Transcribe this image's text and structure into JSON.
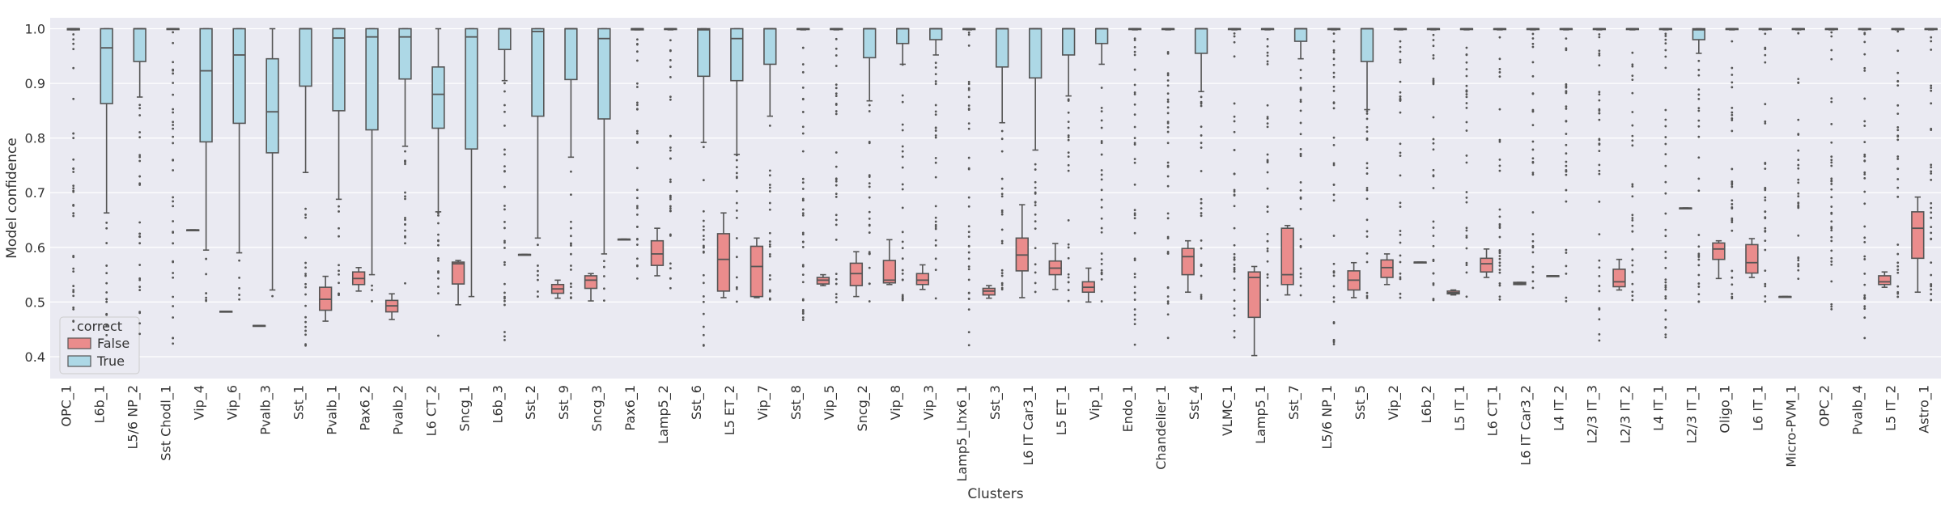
{
  "chart_data": {
    "type": "boxplot",
    "xlabel": "Clusters",
    "ylabel": "Model confidence",
    "ylim": [
      0.36,
      1.02
    ],
    "yticks": [
      0.4,
      0.5,
      0.6,
      0.7,
      0.8,
      0.9,
      1.0
    ],
    "grid": true,
    "legend": {
      "title": "correct",
      "placement": "lower-left",
      "entries": [
        {
          "label": "False",
          "color": "#ea8c8c"
        },
        {
          "label": "True",
          "color": "#add8e6"
        }
      ]
    },
    "categories": [
      "OPC_1",
      "L6b_1",
      "L5/6 NP_2",
      "Sst Chodl_1",
      "Vip_4",
      "Vip_6",
      "Pvalb_3",
      "Sst_1",
      "Pvalb_1",
      "Pax6_2",
      "Pvalb_2",
      "L6 CT_2",
      "Sncg_1",
      "L6b_3",
      "Sst_2",
      "Sst_9",
      "Sncg_3",
      "Pax6_1",
      "Lamp5_2",
      "Sst_6",
      "L5 ET_2",
      "Vip_7",
      "Sst_8",
      "Vip_5",
      "Sncg_2",
      "Vip_8",
      "Vip_3",
      "Lamp5_Lhx6_1",
      "Sst_3",
      "L6 IT Car3_1",
      "L5 ET_1",
      "Vip_1",
      "Endo_1",
      "Chandelier_1",
      "Sst_4",
      "VLMC_1",
      "Lamp5_1",
      "Sst_7",
      "L5/6 NP_1",
      "Sst_5",
      "Vip_2",
      "L6b_2",
      "L5 IT_1",
      "L6 CT_1",
      "L6 IT Car3_2",
      "L4 IT_2",
      "L2/3 IT_3",
      "L2/3 IT_2",
      "L4 IT_1",
      "L2/3 IT_1",
      "Oligo_1",
      "L6 IT_1",
      "Micro-PVM_1",
      "OPC_2",
      "Pvalb_4",
      "L5 IT_2",
      "Astro_1"
    ],
    "series": [
      {
        "name": "False",
        "color": "#ea8c8c",
        "boxes": [
          null,
          null,
          null,
          null,
          {
            "min": 0.632,
            "q1": 0.632,
            "median": 0.632,
            "q3": 0.632,
            "max": 0.632
          },
          {
            "min": 0.483,
            "q1": 0.483,
            "median": 0.483,
            "q3": 0.483,
            "max": 0.483
          },
          {
            "min": 0.457,
            "q1": 0.457,
            "median": 0.457,
            "q3": 0.457,
            "max": 0.457
          },
          null,
          {
            "min": 0.465,
            "q1": 0.485,
            "median": 0.505,
            "q3": 0.527,
            "max": 0.547
          },
          {
            "min": 0.52,
            "q1": 0.532,
            "median": 0.543,
            "q3": 0.555,
            "max": 0.563
          },
          {
            "min": 0.468,
            "q1": 0.482,
            "median": 0.493,
            "q3": 0.503,
            "max": 0.515
          },
          null,
          {
            "min": 0.495,
            "q1": 0.533,
            "median": 0.57,
            "q3": 0.573,
            "max": 0.576
          },
          null,
          {
            "min": 0.587,
            "q1": 0.587,
            "median": 0.587,
            "q3": 0.587,
            "max": 0.587
          },
          {
            "min": 0.507,
            "q1": 0.516,
            "median": 0.524,
            "q3": 0.532,
            "max": 0.54
          },
          {
            "min": 0.502,
            "q1": 0.525,
            "median": 0.54,
            "q3": 0.548,
            "max": 0.552
          },
          {
            "min": 0.615,
            "q1": 0.615,
            "median": 0.615,
            "q3": 0.615,
            "max": 0.615
          },
          {
            "min": 0.548,
            "q1": 0.567,
            "median": 0.588,
            "q3": 0.612,
            "max": 0.635
          },
          null,
          {
            "min": 0.508,
            "q1": 0.52,
            "median": 0.578,
            "q3": 0.625,
            "max": 0.663
          },
          {
            "min": 0.508,
            "q1": 0.51,
            "median": 0.565,
            "q3": 0.602,
            "max": 0.617
          },
          null,
          {
            "min": 0.53,
            "q1": 0.533,
            "median": 0.54,
            "q3": 0.545,
            "max": 0.55
          },
          {
            "min": 0.51,
            "q1": 0.53,
            "median": 0.552,
            "q3": 0.571,
            "max": 0.592
          },
          {
            "min": 0.532,
            "q1": 0.535,
            "median": 0.54,
            "q3": 0.576,
            "max": 0.614
          },
          {
            "min": 0.523,
            "q1": 0.532,
            "median": 0.54,
            "q3": 0.552,
            "max": 0.568
          },
          null,
          {
            "min": 0.507,
            "q1": 0.513,
            "median": 0.52,
            "q3": 0.525,
            "max": 0.53
          },
          {
            "min": 0.508,
            "q1": 0.557,
            "median": 0.586,
            "q3": 0.617,
            "max": 0.678
          },
          {
            "min": 0.523,
            "q1": 0.55,
            "median": 0.562,
            "q3": 0.575,
            "max": 0.607
          },
          {
            "min": 0.5,
            "q1": 0.518,
            "median": 0.527,
            "q3": 0.537,
            "max": 0.562
          },
          null,
          null,
          {
            "min": 0.518,
            "q1": 0.55,
            "median": 0.583,
            "q3": 0.598,
            "max": 0.612
          },
          null,
          {
            "min": 0.402,
            "q1": 0.472,
            "median": 0.545,
            "q3": 0.555,
            "max": 0.565
          },
          {
            "min": 0.513,
            "q1": 0.532,
            "median": 0.55,
            "q3": 0.635,
            "max": 0.64
          },
          null,
          {
            "min": 0.508,
            "q1": 0.522,
            "median": 0.54,
            "q3": 0.557,
            "max": 0.572
          },
          {
            "min": 0.532,
            "q1": 0.545,
            "median": 0.563,
            "q3": 0.577,
            "max": 0.588
          },
          {
            "min": 0.573,
            "q1": 0.573,
            "median": 0.573,
            "q3": 0.573,
            "max": 0.573
          },
          {
            "min": 0.513,
            "q1": 0.515,
            "median": 0.517,
            "q3": 0.52,
            "max": 0.522
          },
          {
            "min": 0.545,
            "q1": 0.555,
            "median": 0.57,
            "q3": 0.58,
            "max": 0.597
          },
          {
            "min": 0.532,
            "q1": 0.532,
            "median": 0.534,
            "q3": 0.536,
            "max": 0.536
          },
          {
            "min": 0.548,
            "q1": 0.548,
            "median": 0.548,
            "q3": 0.548,
            "max": 0.548
          },
          null,
          {
            "min": 0.522,
            "q1": 0.528,
            "median": 0.537,
            "q3": 0.56,
            "max": 0.578
          },
          null,
          {
            "min": 0.672,
            "q1": 0.672,
            "median": 0.672,
            "q3": 0.672,
            "max": 0.672
          },
          {
            "min": 0.543,
            "q1": 0.578,
            "median": 0.597,
            "q3": 0.608,
            "max": 0.612
          },
          {
            "min": 0.545,
            "q1": 0.553,
            "median": 0.572,
            "q3": 0.605,
            "max": 0.616
          },
          {
            "min": 0.51,
            "q1": 0.51,
            "median": 0.51,
            "q3": 0.51,
            "max": 0.51
          },
          null,
          null,
          {
            "min": 0.527,
            "q1": 0.532,
            "median": 0.537,
            "q3": 0.548,
            "max": 0.555
          },
          {
            "min": 0.518,
            "q1": 0.58,
            "median": 0.635,
            "q3": 0.665,
            "max": 0.692
          }
        ]
      },
      {
        "name": "True",
        "color": "#add8e6",
        "boxes": [
          {
            "min": 0.998,
            "q1": 0.998,
            "median": 1.0,
            "q3": 1.0,
            "max": 1.0
          },
          {
            "min": 0.663,
            "q1": 0.863,
            "median": 0.965,
            "q3": 1.0,
            "max": 1.0
          },
          {
            "min": 0.875,
            "q1": 0.94,
            "median": 1.0,
            "q3": 1.0,
            "max": 1.0
          },
          {
            "min": 0.999,
            "q1": 0.999,
            "median": 1.0,
            "q3": 1.0,
            "max": 1.0
          },
          {
            "min": 0.595,
            "q1": 0.793,
            "median": 0.923,
            "q3": 1.0,
            "max": 1.0
          },
          {
            "min": 0.59,
            "q1": 0.827,
            "median": 0.952,
            "q3": 1.0,
            "max": 1.0
          },
          {
            "min": 0.522,
            "q1": 0.773,
            "median": 0.848,
            "q3": 0.945,
            "max": 1.0
          },
          {
            "min": 0.737,
            "q1": 0.895,
            "median": 1.0,
            "q3": 1.0,
            "max": 1.0
          },
          {
            "min": 0.688,
            "q1": 0.85,
            "median": 0.983,
            "q3": 1.0,
            "max": 1.0
          },
          {
            "min": 0.55,
            "q1": 0.815,
            "median": 0.985,
            "q3": 1.0,
            "max": 1.0
          },
          {
            "min": 0.785,
            "q1": 0.908,
            "median": 0.985,
            "q3": 1.0,
            "max": 1.0
          },
          {
            "min": 0.665,
            "q1": 0.818,
            "median": 0.88,
            "q3": 0.93,
            "max": 1.0
          },
          {
            "min": 0.51,
            "q1": 0.78,
            "median": 0.985,
            "q3": 1.0,
            "max": 1.0
          },
          {
            "min": 0.905,
            "q1": 0.962,
            "median": 1.0,
            "q3": 1.0,
            "max": 1.0
          },
          {
            "min": 0.617,
            "q1": 0.84,
            "median": 0.995,
            "q3": 1.0,
            "max": 1.0
          },
          {
            "min": 0.765,
            "q1": 0.907,
            "median": 1.0,
            "q3": 1.0,
            "max": 1.0
          },
          {
            "min": 0.588,
            "q1": 0.835,
            "median": 0.982,
            "q3": 1.0,
            "max": 1.0
          },
          {
            "min": 0.998,
            "q1": 0.998,
            "median": 1.0,
            "q3": 1.0,
            "max": 1.0
          },
          {
            "min": 0.998,
            "q1": 0.999,
            "median": 1.0,
            "q3": 1.0,
            "max": 1.0
          },
          {
            "min": 0.792,
            "q1": 0.913,
            "median": 0.998,
            "q3": 1.0,
            "max": 1.0
          },
          {
            "min": 0.77,
            "q1": 0.905,
            "median": 0.982,
            "q3": 1.0,
            "max": 1.0
          },
          {
            "min": 0.84,
            "q1": 0.935,
            "median": 1.0,
            "q3": 1.0,
            "max": 1.0
          },
          {
            "min": 0.998,
            "q1": 0.999,
            "median": 1.0,
            "q3": 1.0,
            "max": 1.0
          },
          {
            "min": 0.998,
            "q1": 0.999,
            "median": 1.0,
            "q3": 1.0,
            "max": 1.0
          },
          {
            "min": 0.868,
            "q1": 0.947,
            "median": 1.0,
            "q3": 1.0,
            "max": 1.0
          },
          {
            "min": 0.935,
            "q1": 0.973,
            "median": 1.0,
            "q3": 1.0,
            "max": 1.0
          },
          {
            "min": 0.952,
            "q1": 0.98,
            "median": 1.0,
            "q3": 1.0,
            "max": 1.0
          },
          {
            "min": 0.998,
            "q1": 0.999,
            "median": 1.0,
            "q3": 1.0,
            "max": 1.0
          },
          {
            "min": 0.828,
            "q1": 0.93,
            "median": 1.0,
            "q3": 1.0,
            "max": 1.0
          },
          {
            "min": 0.778,
            "q1": 0.91,
            "median": 1.0,
            "q3": 1.0,
            "max": 1.0
          },
          {
            "min": 0.877,
            "q1": 0.952,
            "median": 1.0,
            "q3": 1.0,
            "max": 1.0
          },
          {
            "min": 0.935,
            "q1": 0.973,
            "median": 1.0,
            "q3": 1.0,
            "max": 1.0
          },
          {
            "min": 0.998,
            "q1": 0.999,
            "median": 1.0,
            "q3": 1.0,
            "max": 1.0
          },
          {
            "min": 0.998,
            "q1": 0.999,
            "median": 1.0,
            "q3": 1.0,
            "max": 1.0
          },
          {
            "min": 0.885,
            "q1": 0.955,
            "median": 1.0,
            "q3": 1.0,
            "max": 1.0
          },
          {
            "min": 0.998,
            "q1": 0.999,
            "median": 1.0,
            "q3": 1.0,
            "max": 1.0
          },
          {
            "min": 0.998,
            "q1": 0.999,
            "median": 1.0,
            "q3": 1.0,
            "max": 1.0
          },
          {
            "min": 0.945,
            "q1": 0.977,
            "median": 1.0,
            "q3": 1.0,
            "max": 1.0
          },
          {
            "min": 0.998,
            "q1": 0.999,
            "median": 1.0,
            "q3": 1.0,
            "max": 1.0
          },
          {
            "min": 0.852,
            "q1": 0.94,
            "median": 1.0,
            "q3": 1.0,
            "max": 1.0
          },
          {
            "min": 0.998,
            "q1": 0.999,
            "median": 1.0,
            "q3": 1.0,
            "max": 1.0
          },
          {
            "min": 0.998,
            "q1": 0.999,
            "median": 1.0,
            "q3": 1.0,
            "max": 1.0
          },
          {
            "min": 0.998,
            "q1": 0.999,
            "median": 1.0,
            "q3": 1.0,
            "max": 1.0
          },
          {
            "min": 0.998,
            "q1": 0.999,
            "median": 1.0,
            "q3": 1.0,
            "max": 1.0
          },
          {
            "min": 0.998,
            "q1": 0.999,
            "median": 1.0,
            "q3": 1.0,
            "max": 1.0
          },
          {
            "min": 0.998,
            "q1": 0.999,
            "median": 1.0,
            "q3": 1.0,
            "max": 1.0
          },
          {
            "min": 0.998,
            "q1": 0.999,
            "median": 1.0,
            "q3": 1.0,
            "max": 1.0
          },
          {
            "min": 0.998,
            "q1": 0.999,
            "median": 1.0,
            "q3": 1.0,
            "max": 1.0
          },
          {
            "min": 0.998,
            "q1": 0.999,
            "median": 1.0,
            "q3": 1.0,
            "max": 1.0
          },
          {
            "min": 0.955,
            "q1": 0.98,
            "median": 0.998,
            "q3": 1.0,
            "max": 1.0
          },
          {
            "min": 0.998,
            "q1": 0.999,
            "median": 1.0,
            "q3": 1.0,
            "max": 1.0
          },
          {
            "min": 0.998,
            "q1": 0.999,
            "median": 1.0,
            "q3": 1.0,
            "max": 1.0
          },
          {
            "min": 0.998,
            "q1": 0.999,
            "median": 1.0,
            "q3": 1.0,
            "max": 1.0
          },
          {
            "min": 0.998,
            "q1": 0.999,
            "median": 1.0,
            "q3": 1.0,
            "max": 1.0
          },
          {
            "min": 0.998,
            "q1": 0.999,
            "median": 1.0,
            "q3": 1.0,
            "max": 1.0
          },
          {
            "min": 0.998,
            "q1": 0.999,
            "median": 1.0,
            "q3": 1.0,
            "max": 1.0
          },
          {
            "min": 0.998,
            "q1": 0.999,
            "median": 1.0,
            "q3": 1.0,
            "max": 1.0
          }
        ]
      }
    ]
  },
  "colors": {
    "plot_background": "#eaeaf2",
    "grid": "#ffffff",
    "box_edge": "#555555",
    "outlier": "#555555",
    "text": "#333333"
  }
}
